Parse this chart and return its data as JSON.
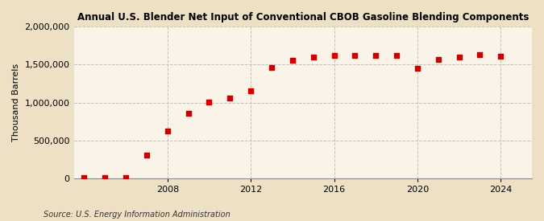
{
  "title": "Annual U.S. Blender Net Input of Conventional CBOB Gasoline Blending Components",
  "ylabel": "Thousand Barrels",
  "source": "Source: U.S. Energy Information Administration",
  "background_color": "#ede0c4",
  "plot_background_color": "#faf4e8",
  "marker_color": "#cc0000",
  "grid_color": "#bbbbbb",
  "years": [
    2004,
    2005,
    2006,
    2007,
    2008,
    2009,
    2010,
    2011,
    2012,
    2013,
    2014,
    2015,
    2016,
    2017,
    2018,
    2019,
    2020,
    2021,
    2022,
    2023,
    2024
  ],
  "values": [
    5000,
    10000,
    12000,
    310000,
    620000,
    855000,
    1010000,
    1060000,
    1155000,
    1460000,
    1560000,
    1600000,
    1620000,
    1625000,
    1625000,
    1625000,
    1450000,
    1570000,
    1600000,
    1630000,
    1610000
  ],
  "ylim": [
    0,
    2000000
  ],
  "yticks": [
    0,
    500000,
    1000000,
    1500000,
    2000000
  ],
  "xlim": [
    2003.5,
    2025.5
  ],
  "xticks": [
    2008,
    2012,
    2016,
    2020,
    2024
  ]
}
